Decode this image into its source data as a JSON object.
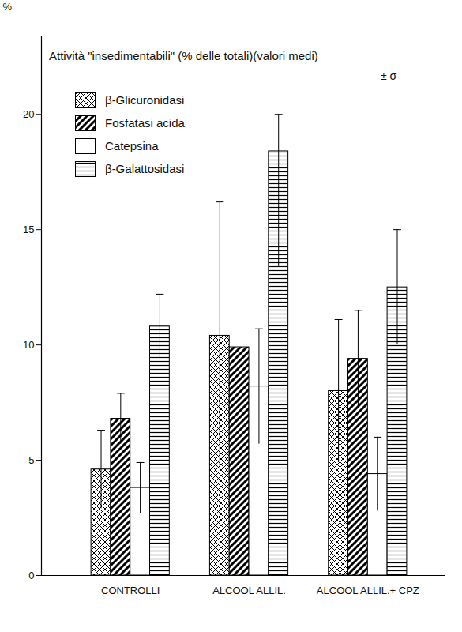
{
  "chart_data": {
    "type": "bar",
    "title": "Attività \"insedimentabili\" (% delle totali)(valori medi)",
    "subtitle": "± σ",
    "ylabel": "%",
    "categories": [
      "CONTROLLI",
      "ALCOOL ALLIL.",
      "ALCOOL ALLIL.+ CPZ"
    ],
    "series": [
      {
        "name": "β-Glicuronidasi",
        "color": "#000000",
        "values": [
          4.6,
          10.4,
          8.0
        ],
        "errors_low": [
          1.7,
          5.8,
          3.1
        ],
        "errors_high": [
          1.7,
          5.8,
          3.1
        ]
      },
      {
        "name": "Fosfatasi acida",
        "color": "#000000",
        "values": [
          6.8,
          9.9,
          9.4
        ],
        "errors_low": [
          1.1,
          null,
          2.1
        ],
        "errors_high": [
          1.1,
          null,
          2.1
        ]
      },
      {
        "name": "Catepsina",
        "color": "#000000",
        "values": [
          3.8,
          8.2,
          4.4
        ],
        "errors_low": [
          1.1,
          2.5,
          1.6
        ],
        "errors_high": [
          1.1,
          2.5,
          1.6
        ]
      },
      {
        "name": "β-Galattosidasi",
        "color": "#000000",
        "values": [
          10.8,
          18.4,
          12.5
        ],
        "errors_low": [
          1.4,
          5.0,
          2.5
        ],
        "errors_high": [
          1.4,
          1.6,
          2.5
        ]
      }
    ],
    "ylim": [
      0,
      23.4
    ],
    "yticks": [
      0,
      5,
      10,
      15,
      20
    ],
    "legend": "top-left",
    "grid": false
  }
}
